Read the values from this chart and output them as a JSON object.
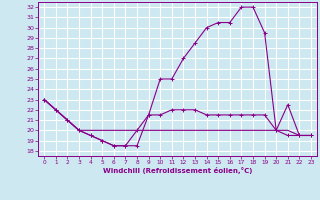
{
  "xlabel": "Windchill (Refroidissement éolien,°C)",
  "bg_color": "#cde8f0",
  "grid_color": "#ffffff",
  "line_color": "#880088",
  "xlim": [
    -0.5,
    23.5
  ],
  "ylim": [
    17.5,
    32.5
  ],
  "xticks": [
    0,
    1,
    2,
    3,
    4,
    5,
    6,
    7,
    8,
    9,
    10,
    11,
    12,
    13,
    14,
    15,
    16,
    17,
    18,
    19,
    20,
    21,
    22,
    23
  ],
  "yticks": [
    18,
    19,
    20,
    21,
    22,
    23,
    24,
    25,
    26,
    27,
    28,
    29,
    30,
    31,
    32
  ],
  "x": [
    0,
    1,
    2,
    3,
    4,
    5,
    6,
    7,
    8,
    9,
    10,
    11,
    12,
    13,
    14,
    15,
    16,
    17,
    18,
    19,
    20,
    21,
    22,
    23
  ],
  "y_top": [
    23,
    22,
    21,
    20,
    19.5,
    19,
    18.5,
    18.5,
    20,
    21.5,
    25,
    25,
    27,
    28.5,
    30,
    30.5,
    30.5,
    32,
    32,
    29.5,
    20,
    19.5,
    19.5,
    19.5
  ],
  "y_mid": [
    23,
    22,
    21,
    20,
    19.5,
    19,
    18.5,
    18.5,
    18.5,
    21.5,
    21.5,
    22,
    22,
    22,
    21.5,
    21.5,
    21.5,
    21.5,
    21.5,
    21.5,
    20,
    22.5,
    19.5,
    19.5
  ],
  "y_bot": [
    23,
    22,
    21,
    20,
    20,
    20,
    20,
    20,
    20,
    20,
    20,
    20,
    20,
    20,
    20,
    20,
    20,
    20,
    20,
    20,
    20,
    20,
    19.5,
    19.5
  ]
}
